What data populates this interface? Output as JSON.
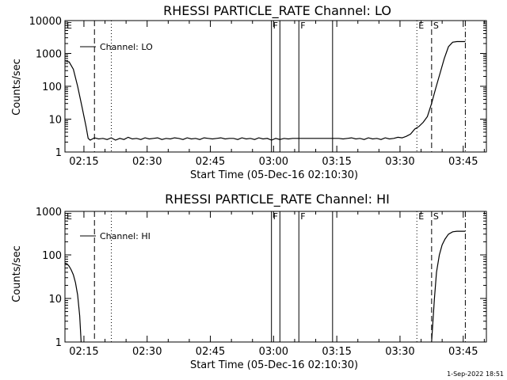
{
  "colors": {
    "background": "#ffffff",
    "ink": "#000000"
  },
  "footer": {
    "date_stamp": "1-Sep-2022 18:51"
  },
  "chart_data": [
    {
      "type": "line",
      "title": "RHESSI PARTICLE_RATE Channel: LO",
      "xlabel": "Start Time (05-Dec-16 02:10:30)",
      "ylabel": "Counts/sec",
      "xlim": [
        "02:10:30",
        "03:50:30"
      ],
      "ylim": [
        1,
        10000
      ],
      "yscale": "log",
      "x_ticks": [
        "02:15",
        "02:30",
        "02:45",
        "03:00",
        "03:15",
        "03:30",
        "03:45"
      ],
      "y_ticks": [
        "1",
        "10",
        "100",
        "1000",
        "10000"
      ],
      "legend": {
        "entry": "Channel: LO",
        "position": "top-left"
      },
      "series": [
        {
          "name": "Channel: LO",
          "points": [
            [
              "02:10:30",
              600
            ],
            [
              "02:11:30",
              550
            ],
            [
              "02:12:30",
              330
            ],
            [
              "02:13:30",
              100
            ],
            [
              "02:14:30",
              25
            ],
            [
              "02:15:30",
              6
            ],
            [
              "02:16:00",
              2.6
            ],
            [
              "02:16:30",
              2.3
            ],
            [
              "02:17:30",
              2.7
            ],
            [
              "02:18:30",
              2.5
            ],
            [
              "02:19:30",
              2.6
            ],
            [
              "02:20:30",
              2.4
            ],
            [
              "02:21:30",
              2.7
            ],
            [
              "02:22:30",
              2.3
            ],
            [
              "02:23:30",
              2.6
            ],
            [
              "02:24:30",
              2.4
            ],
            [
              "02:25:30",
              2.8
            ],
            [
              "02:26:30",
              2.5
            ],
            [
              "02:27:30",
              2.6
            ],
            [
              "02:28:30",
              2.4
            ],
            [
              "02:29:30",
              2.7
            ],
            [
              "02:30:30",
              2.5
            ],
            [
              "02:31:30",
              2.6
            ],
            [
              "02:32:30",
              2.7
            ],
            [
              "02:33:30",
              2.4
            ],
            [
              "02:34:30",
              2.6
            ],
            [
              "02:35:30",
              2.5
            ],
            [
              "02:36:30",
              2.7
            ],
            [
              "02:37:30",
              2.6
            ],
            [
              "02:38:30",
              2.4
            ],
            [
              "02:39:30",
              2.7
            ],
            [
              "02:40:30",
              2.5
            ],
            [
              "02:41:30",
              2.6
            ],
            [
              "02:42:30",
              2.4
            ],
            [
              "02:43:30",
              2.7
            ],
            [
              "02:44:30",
              2.6
            ],
            [
              "02:45:30",
              2.5
            ],
            [
              "02:46:30",
              2.6
            ],
            [
              "02:47:30",
              2.7
            ],
            [
              "02:48:30",
              2.5
            ],
            [
              "02:49:30",
              2.6
            ],
            [
              "02:50:30",
              2.6
            ],
            [
              "02:51:30",
              2.4
            ],
            [
              "02:52:30",
              2.7
            ],
            [
              "02:53:30",
              2.5
            ],
            [
              "02:54:30",
              2.6
            ],
            [
              "02:55:30",
              2.4
            ],
            [
              "02:56:30",
              2.7
            ],
            [
              "02:57:30",
              2.5
            ],
            [
              "02:58:30",
              2.6
            ],
            [
              "02:59:30",
              2.3
            ],
            [
              "03:00:30",
              2.6
            ],
            [
              "03:01:30",
              2.4
            ],
            [
              "03:02:30",
              2.6
            ],
            [
              "03:03:30",
              2.5
            ],
            [
              "03:04:30",
              2.6
            ],
            [
              "03:05:30",
              2.6
            ],
            [
              "03:06:30",
              2.6
            ],
            [
              "03:07:30",
              2.6
            ],
            [
              "03:08:30",
              2.6
            ],
            [
              "03:09:30",
              2.6
            ],
            [
              "03:10:30",
              2.6
            ],
            [
              "03:11:30",
              2.6
            ],
            [
              "03:12:30",
              2.6
            ],
            [
              "03:13:30",
              2.6
            ],
            [
              "03:14:30",
              2.6
            ],
            [
              "03:15:30",
              2.6
            ],
            [
              "03:16:30",
              2.5
            ],
            [
              "03:17:30",
              2.6
            ],
            [
              "03:18:30",
              2.7
            ],
            [
              "03:19:30",
              2.5
            ],
            [
              "03:20:30",
              2.6
            ],
            [
              "03:21:30",
              2.4
            ],
            [
              "03:22:30",
              2.7
            ],
            [
              "03:23:30",
              2.5
            ],
            [
              "03:24:30",
              2.6
            ],
            [
              "03:25:30",
              2.4
            ],
            [
              "03:26:30",
              2.7
            ],
            [
              "03:27:30",
              2.5
            ],
            [
              "03:28:30",
              2.6
            ],
            [
              "03:29:30",
              2.8
            ],
            [
              "03:30:30",
              2.7
            ],
            [
              "03:31:30",
              3.0
            ],
            [
              "03:32:30",
              3.5
            ],
            [
              "03:33:30",
              5
            ],
            [
              "03:34:30",
              6
            ],
            [
              "03:35:30",
              8
            ],
            [
              "03:36:30",
              12
            ],
            [
              "03:37:30",
              30
            ],
            [
              "03:38:30",
              90
            ],
            [
              "03:39:30",
              250
            ],
            [
              "03:40:30",
              700
            ],
            [
              "03:41:30",
              1600
            ],
            [
              "03:42:30",
              2200
            ],
            [
              "03:43:30",
              2300
            ],
            [
              "03:44:30",
              2300
            ],
            [
              "03:45:30",
              2300
            ]
          ]
        }
      ],
      "markers": [
        {
          "label": "E",
          "time": "02:10:30",
          "style": "solid"
        },
        {
          "label": "",
          "time": "02:17:30",
          "style": "dashed"
        },
        {
          "label": "",
          "time": "02:21:30",
          "style": "dotted"
        },
        {
          "label": "F",
          "time": "02:59:30",
          "style": "solid"
        },
        {
          "label": "",
          "time": "03:01:30",
          "style": "solid"
        },
        {
          "label": "F",
          "time": "03:06:00",
          "style": "solid"
        },
        {
          "label": "",
          "time": "03:14:00",
          "style": "solid"
        },
        {
          "label": "E",
          "time": "03:34:00",
          "style": "dotted"
        },
        {
          "label": "S",
          "time": "03:37:30",
          "style": "dashed"
        },
        {
          "label": "",
          "time": "03:45:30",
          "style": "dashdot"
        }
      ]
    },
    {
      "type": "line",
      "title": "RHESSI PARTICLE_RATE Channel: HI",
      "xlabel": "Start Time (05-Dec-16 02:10:30)",
      "ylabel": "Counts/sec",
      "xlim": [
        "02:10:30",
        "03:50:30"
      ],
      "ylim": [
        1,
        1000
      ],
      "yscale": "log",
      "x_ticks": [
        "02:15",
        "02:30",
        "02:45",
        "03:00",
        "03:15",
        "03:30",
        "03:45"
      ],
      "y_ticks": [
        "1",
        "10",
        "100",
        "1000"
      ],
      "legend": {
        "entry": "Channel: HI",
        "position": "top-left"
      },
      "series": [
        {
          "name": "Channel: HI",
          "points": [
            [
              "02:10:30",
              65
            ],
            [
              "02:11:00",
              62
            ],
            [
              "02:11:30",
              55
            ],
            [
              "02:12:00",
              45
            ],
            [
              "02:12:30",
              35
            ],
            [
              "02:13:00",
              23
            ],
            [
              "02:13:30",
              12
            ],
            [
              "02:14:00",
              4
            ],
            [
              "02:14:20",
              1
            ],
            [
              "03:37:30",
              1
            ],
            [
              "03:38:10",
              10
            ],
            [
              "03:38:40",
              40
            ],
            [
              "03:39:20",
              100
            ],
            [
              "03:40:00",
              170
            ],
            [
              "03:40:40",
              230
            ],
            [
              "03:41:30",
              300
            ],
            [
              "03:42:30",
              340
            ],
            [
              "03:43:30",
              350
            ],
            [
              "03:45:30",
              350
            ]
          ]
        }
      ],
      "markers": [
        {
          "label": "E",
          "time": "02:10:30",
          "style": "solid"
        },
        {
          "label": "",
          "time": "02:17:30",
          "style": "dashed"
        },
        {
          "label": "",
          "time": "02:21:30",
          "style": "dotted"
        },
        {
          "label": "F",
          "time": "02:59:30",
          "style": "solid"
        },
        {
          "label": "",
          "time": "03:01:30",
          "style": "solid"
        },
        {
          "label": "F",
          "time": "03:06:00",
          "style": "solid"
        },
        {
          "label": "",
          "time": "03:14:00",
          "style": "solid"
        },
        {
          "label": "E",
          "time": "03:34:00",
          "style": "dotted"
        },
        {
          "label": "S",
          "time": "03:37:30",
          "style": "dashed"
        },
        {
          "label": "",
          "time": "03:45:30",
          "style": "dashdot"
        }
      ]
    }
  ]
}
